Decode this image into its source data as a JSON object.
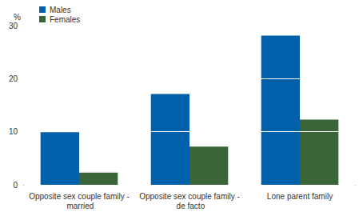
{
  "chart_data": {
    "type": "bar",
    "y_label": "%",
    "categories": [
      "Opposite sex couple family - married",
      "Opposite sex couple family - de facto",
      "Lone parent family"
    ],
    "series": [
      {
        "name": "Males",
        "color": "#0060a9",
        "values": [
          9.9,
          17.1,
          28.1
        ]
      },
      {
        "name": "Females",
        "color": "#386638",
        "values": [
          2.3,
          7.2,
          12.3
        ]
      }
    ],
    "ylim": [
      0,
      30
    ],
    "yticks": [
      0,
      10,
      20,
      30
    ],
    "grid": true,
    "legend": "top-left"
  }
}
